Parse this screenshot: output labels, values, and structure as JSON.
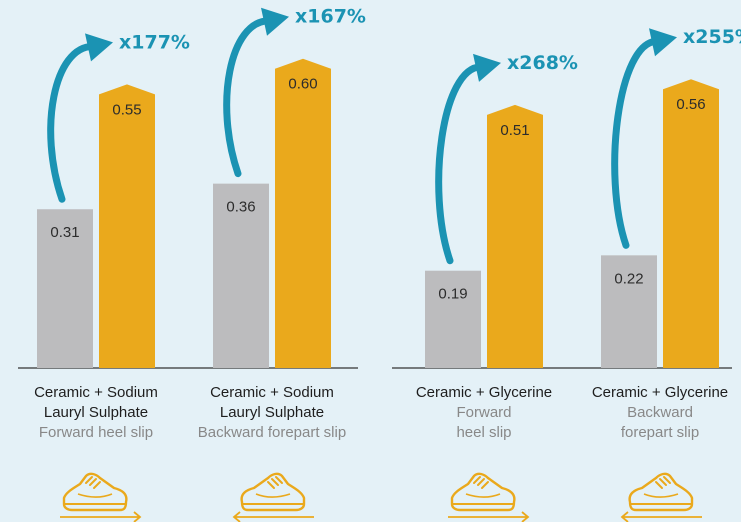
{
  "colors": {
    "background": "#e4f1f7",
    "bar_before": "#bcbcbe",
    "bar_after": "#eaa91c",
    "arrow": "#1b93b3",
    "axis": "#333333",
    "shoe": "#eaa91c"
  },
  "icons": [
    "shoe-forward-icon",
    "shoe-backward-icon"
  ],
  "chart_data": {
    "type": "bar",
    "ylim": [
      0,
      0.66
    ],
    "grid": false,
    "groups": [
      {
        "label_lines": [
          "Ceramic + Sodium",
          "Lauryl Sulphate"
        ],
        "sub_lines": [
          "Forward heel slip"
        ],
        "values": [
          0.31,
          0.55
        ],
        "value_labels": [
          "0.31",
          "0.55"
        ],
        "multiplier": "x177%",
        "direction": "forward"
      },
      {
        "label_lines": [
          "Ceramic + Sodium",
          "Lauryl Sulphate"
        ],
        "sub_lines": [
          "Backward forepart slip"
        ],
        "values": [
          0.36,
          0.6
        ],
        "value_labels": [
          "0.36",
          "0.60"
        ],
        "multiplier": "x167%",
        "direction": "backward"
      },
      {
        "label_lines": [
          "Ceramic + Glycerine"
        ],
        "sub_lines": [
          "Forward",
          "heel slip"
        ],
        "values": [
          0.19,
          0.51
        ],
        "value_labels": [
          "0.19",
          "0.51"
        ],
        "multiplier": "x268%",
        "direction": "forward"
      },
      {
        "label_lines": [
          "Ceramic + Glycerine"
        ],
        "sub_lines": [
          "Backward",
          "forepart slip"
        ],
        "values": [
          0.22,
          0.56
        ],
        "value_labels": [
          "0.22",
          "0.56"
        ],
        "multiplier": "x255%",
        "direction": "backward"
      }
    ]
  }
}
